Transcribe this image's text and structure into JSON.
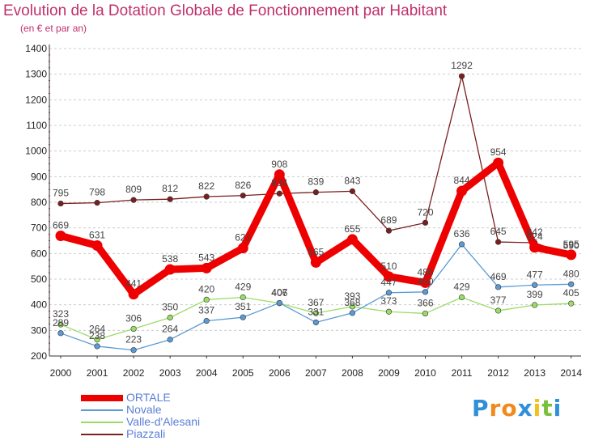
{
  "chart_data": {
    "type": "line",
    "title": "Evolution de la Dotation Globale de Fonctionnement par Habitant",
    "subtitle": "(en € et par an)",
    "x": [
      2000,
      2001,
      2002,
      2003,
      2004,
      2005,
      2006,
      2007,
      2008,
      2009,
      2010,
      2011,
      2012,
      2013,
      2014
    ],
    "ylim": [
      200,
      1400
    ],
    "yticks": [
      200,
      300,
      400,
      500,
      600,
      700,
      800,
      900,
      1000,
      1100,
      1200,
      1300,
      1400
    ],
    "grid": "horizontal-dashed",
    "legend_position": "bottom-left",
    "series": [
      {
        "name": "Piazzali",
        "color": "#7a1f1f",
        "values": [
          795,
          798,
          809,
          812,
          822,
          826,
          834,
          839,
          843,
          689,
          720,
          1292,
          645,
          642,
          590
        ]
      },
      {
        "name": "Valle-d'Alesani",
        "color": "#99dd66",
        "values": [
          323,
          264,
          306,
          350,
          420,
          429,
          406,
          367,
          393,
          373,
          366,
          429,
          377,
          399,
          405
        ]
      },
      {
        "name": "Novale",
        "color": "#5b9bd5",
        "values": [
          289,
          238,
          223,
          264,
          337,
          351,
          407,
          331,
          368,
          447,
          450,
          636,
          469,
          477,
          480
        ]
      },
      {
        "name": "ORTALE",
        "color": "#ee0000",
        "values": [
          669,
          631,
          441,
          538,
          543,
          621,
          908,
          565,
          655,
          510,
          486,
          844,
          954,
          624,
          595
        ]
      }
    ]
  },
  "legend": [
    {
      "name": "ORTALE",
      "color": "#ee0000"
    },
    {
      "name": "Novale",
      "color": "#5b9bd5"
    },
    {
      "name": "Valle-d'Alesani",
      "color": "#99dd66"
    },
    {
      "name": "Piazzali",
      "color": "#7a1f1f"
    }
  ],
  "logo": {
    "letters": [
      "P",
      "r",
      "o",
      "x",
      "i",
      "t",
      "i"
    ],
    "colors": [
      "#2f8fd8",
      "#f08a1c",
      "#f08a1c",
      "#2f8fd8",
      "#f2c21b",
      "#7bbf3a",
      "#2f8fd8"
    ]
  }
}
